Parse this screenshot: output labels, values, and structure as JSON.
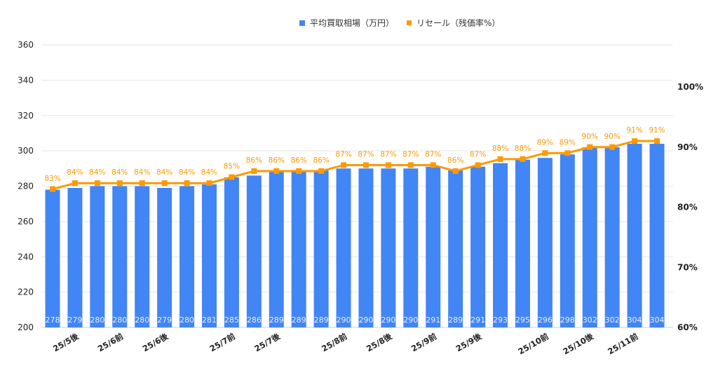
{
  "chart_data": {
    "type": "bar+line",
    "legend": {
      "position": "top"
    },
    "grid": true,
    "categories": [
      "",
      "25/5後",
      "",
      "25/6前",
      "",
      "25/6後",
      "",
      "",
      "25/7前",
      "",
      "25/7後",
      "",
      "",
      "25/8前",
      "",
      "25/8後",
      "",
      "25/9前",
      "",
      "25/9後",
      "",
      "",
      "25/10前",
      "",
      "25/10後",
      "",
      "25/11前",
      ""
    ],
    "series": [
      {
        "name": "平均買取相場（万円）",
        "type": "bar",
        "axis": "left",
        "color": "#4285F4",
        "values": [
          278,
          279,
          280,
          280,
          280,
          279,
          280,
          281,
          285,
          286,
          289,
          289,
          289,
          290,
          290,
          290,
          290,
          291,
          289,
          291,
          293,
          295,
          296,
          298,
          302,
          302,
          304,
          304
        ]
      },
      {
        "name": "リセール（残価率%）",
        "type": "line",
        "axis": "right",
        "color": "#FF9900",
        "values": [
          83,
          84,
          84,
          84,
          84,
          84,
          84,
          84,
          85,
          86,
          86,
          86,
          86,
          87,
          87,
          87,
          87,
          87,
          86,
          87,
          88,
          88,
          89,
          89,
          90,
          90,
          91,
          91
        ]
      }
    ],
    "y_left": {
      "ticks": [
        200,
        220,
        240,
        260,
        280,
        300,
        320,
        340,
        360
      ],
      "range": [
        200,
        360
      ]
    },
    "y_right": {
      "ticks": [
        "60%",
        "70%",
        "80%",
        "90%",
        "100%"
      ],
      "range": [
        60,
        107
      ]
    }
  }
}
